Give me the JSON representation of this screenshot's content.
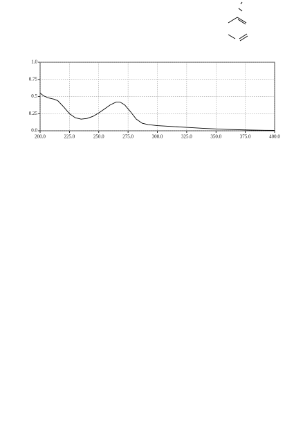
{
  "chart_data": {
    "type": "line",
    "x": [
      200,
      203,
      207,
      212,
      215,
      220,
      225,
      230,
      235,
      240,
      245,
      250,
      255,
      260,
      265,
      268,
      272,
      277,
      282,
      287,
      292,
      300,
      310,
      325,
      340,
      360,
      380,
      400
    ],
    "series": [
      {
        "color": "#000000",
        "values": [
          0.55,
          0.51,
          0.48,
          0.46,
          0.44,
          0.35,
          0.25,
          0.19,
          0.17,
          0.18,
          0.21,
          0.26,
          0.32,
          0.38,
          0.42,
          0.42,
          0.38,
          0.28,
          0.17,
          0.11,
          0.09,
          0.075,
          0.065,
          0.05,
          0.035,
          0.02,
          0.01,
          0.005
        ]
      }
    ],
    "xlim": [
      200,
      400
    ],
    "xticks": [
      {
        "value": 200,
        "label": "200.0"
      },
      {
        "value": 225,
        "label": "225.0"
      },
      {
        "value": 250,
        "label": "250.0"
      },
      {
        "value": 275,
        "label": "275.0"
      },
      {
        "value": 300,
        "label": "300.0"
      },
      {
        "value": 325,
        "label": "325.0"
      },
      {
        "value": 350,
        "label": "350.0"
      },
      {
        "value": 375,
        "label": "375.0"
      },
      {
        "value": 400,
        "label": "400.0"
      }
    ],
    "ylim": [
      0,
      1
    ],
    "yticks": [
      {
        "value": 0,
        "label": "0.0"
      },
      0.25,
      0.5,
      0.75,
      {
        "value": 1,
        "label": "1.0"
      }
    ],
    "grid": true
  }
}
